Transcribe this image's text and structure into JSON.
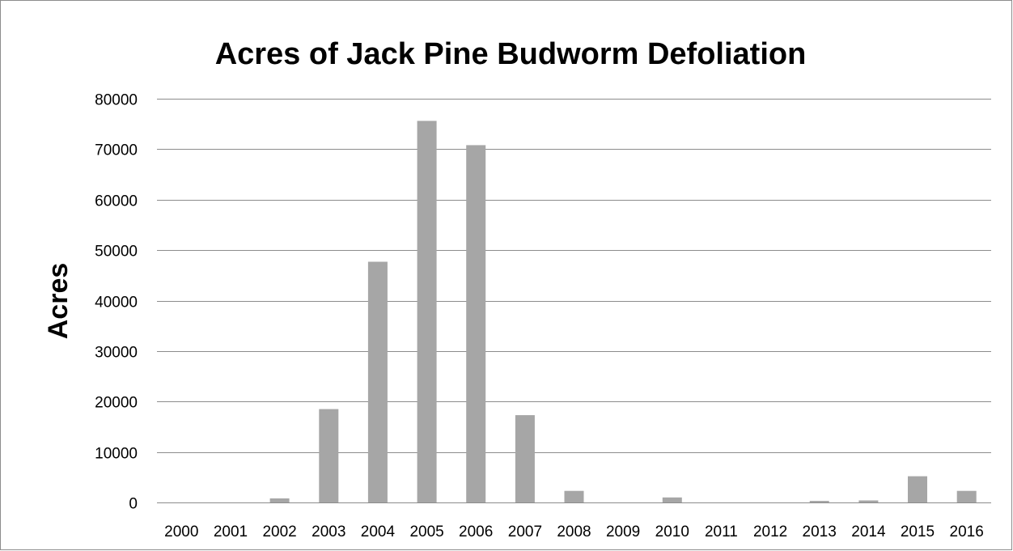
{
  "chart_data": {
    "type": "bar",
    "title": "Acres of Jack Pine Budworm Defoliation",
    "xlabel": "",
    "ylabel": "Acres",
    "ylim": [
      0,
      80000
    ],
    "yticks": [
      0,
      10000,
      20000,
      30000,
      40000,
      50000,
      60000,
      70000,
      80000
    ],
    "categories": [
      "2000",
      "2001",
      "2002",
      "2003",
      "2004",
      "2005",
      "2006",
      "2007",
      "2008",
      "2009",
      "2010",
      "2011",
      "2012",
      "2013",
      "2014",
      "2015",
      "2016"
    ],
    "values": [
      0,
      0,
      800,
      18500,
      47700,
      75600,
      70800,
      17300,
      2300,
      0,
      1000,
      0,
      0,
      300,
      400,
      5200,
      2300
    ],
    "grid": true,
    "legend": "none",
    "bar_color": "#a6a6a6"
  }
}
